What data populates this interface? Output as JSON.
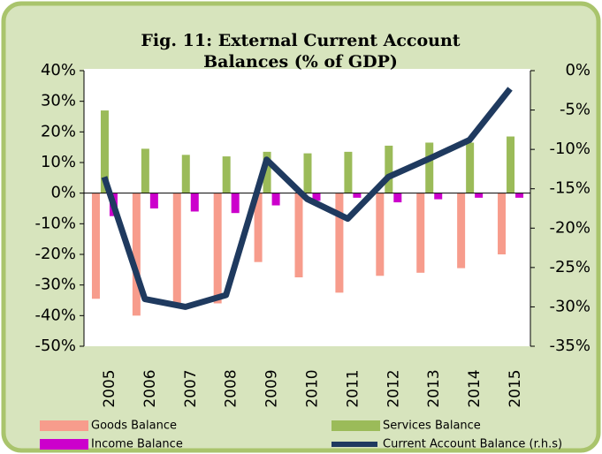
{
  "chart_data": {
    "type": "bar",
    "title": "Fig. 11: External Current Account Balances (% of GDP)",
    "categories": [
      "2005",
      "2006",
      "2007",
      "2008",
      "2009",
      "2010",
      "2011",
      "2012",
      "2013",
      "2014",
      "2015"
    ],
    "series": [
      {
        "name": "Goods Balance",
        "color": "#f79c8c",
        "values": [
          -34.5,
          -40,
          -36,
          -36,
          -22.5,
          -27.5,
          -32.5,
          -27,
          -26,
          -24.5,
          -20
        ]
      },
      {
        "name": "Services Balance",
        "color": "#9bbb59",
        "values": [
          27,
          14.5,
          12.5,
          12,
          13.5,
          13,
          13.5,
          15.5,
          16.5,
          16.5,
          18.5
        ]
      },
      {
        "name": "Income Balance",
        "color": "#cc00cc",
        "values": [
          -7.5,
          -5,
          -6,
          -6.5,
          -4,
          -2.5,
          -1.5,
          -3,
          -2,
          -1.5,
          -1.5
        ]
      },
      {
        "name": "Current Account Balance (r.h.s)",
        "color": "#1f3a5f",
        "type": "line",
        "axis": "y2",
        "values": [
          -13.5,
          -29,
          -30,
          -28.5,
          -11.3,
          -16.3,
          -18.8,
          -13.5,
          -11.2,
          -8.8,
          -2.3
        ]
      }
    ],
    "ylim": [
      -50,
      40
    ],
    "yticks": [
      {
        "value": -50,
        "label": "-50%"
      },
      {
        "value": -40,
        "label": "-40%"
      },
      {
        "value": -30,
        "label": "-30%"
      },
      {
        "value": -20,
        "label": "-20%"
      },
      {
        "value": -10,
        "label": "-10%"
      },
      {
        "value": 0,
        "label": "0%"
      },
      {
        "value": 10,
        "label": "10%"
      },
      {
        "value": 20,
        "label": "20%"
      },
      {
        "value": 30,
        "label": "30%"
      },
      {
        "value": 40,
        "label": "40%"
      }
    ],
    "y2lim": [
      -35,
      0
    ],
    "y2ticks": [
      {
        "value": -35,
        "label": "-35%"
      },
      {
        "value": -30,
        "label": "-30%"
      },
      {
        "value": -25,
        "label": "-25%"
      },
      {
        "value": -20,
        "label": "-20%"
      },
      {
        "value": -15,
        "label": "-15%"
      },
      {
        "value": -10,
        "label": "-10%"
      },
      {
        "value": -5,
        "label": "-5%"
      },
      {
        "value": 0,
        "label": "0%"
      }
    ],
    "grid": false
  }
}
